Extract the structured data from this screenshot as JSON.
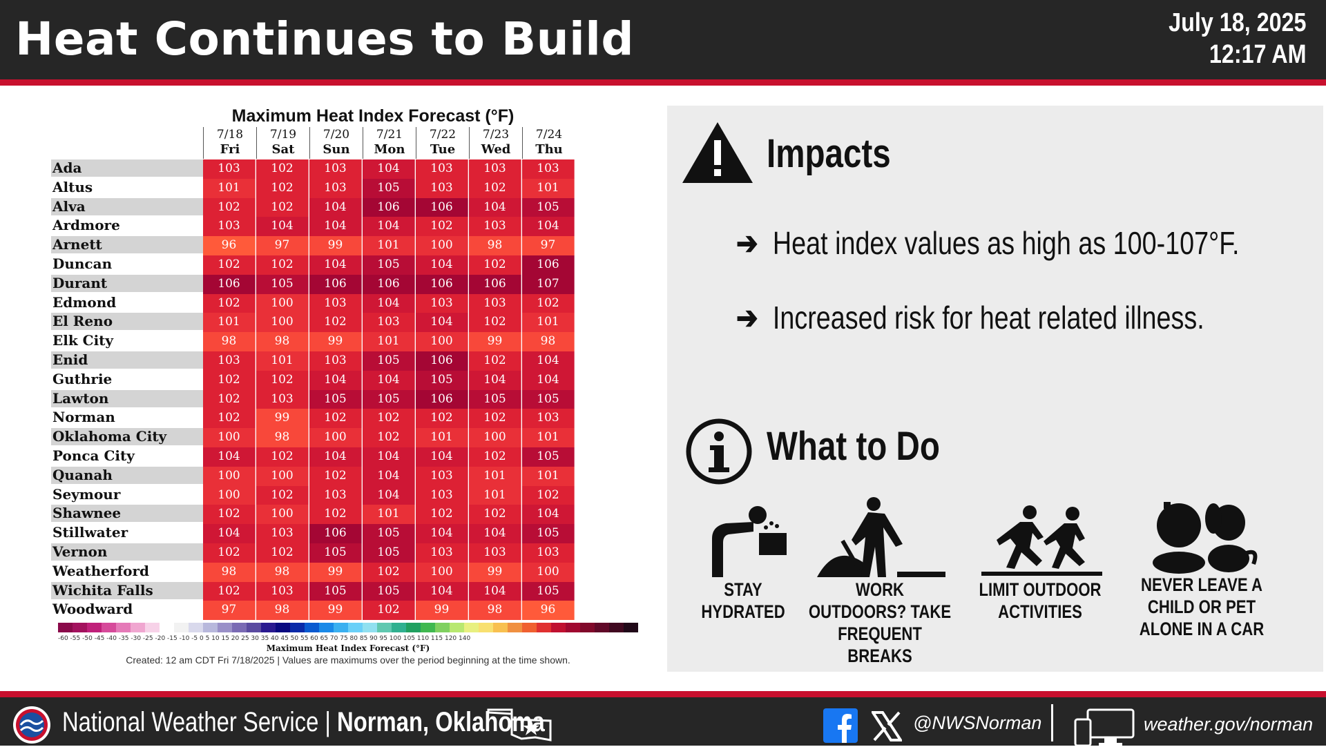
{
  "header": {
    "title": "Heat Continues to Build",
    "date": "July 18, 2025",
    "time": "12:17 AM"
  },
  "table": {
    "title": "Maximum Heat Index Forecast (°F)",
    "days": [
      {
        "date": "7/18",
        "dow": "Fri"
      },
      {
        "date": "7/19",
        "dow": "Sat"
      },
      {
        "date": "7/20",
        "dow": "Sun"
      },
      {
        "date": "7/21",
        "dow": "Mon"
      },
      {
        "date": "7/22",
        "dow": "Tue"
      },
      {
        "date": "7/23",
        "dow": "Wed"
      },
      {
        "date": "7/24",
        "dow": "Thu"
      }
    ],
    "rows": [
      {
        "city": "Ada",
        "values": [
          103,
          102,
          103,
          104,
          103,
          103,
          103
        ]
      },
      {
        "city": "Altus",
        "values": [
          101,
          102,
          103,
          105,
          103,
          102,
          101
        ]
      },
      {
        "city": "Alva",
        "values": [
          102,
          102,
          104,
          106,
          106,
          104,
          105
        ]
      },
      {
        "city": "Ardmore",
        "values": [
          103,
          104,
          104,
          104,
          102,
          103,
          104
        ]
      },
      {
        "city": "Arnett",
        "values": [
          96,
          97,
          99,
          101,
          100,
          98,
          97
        ]
      },
      {
        "city": "Duncan",
        "values": [
          102,
          102,
          104,
          105,
          104,
          102,
          106
        ]
      },
      {
        "city": "Durant",
        "values": [
          106,
          105,
          106,
          106,
          106,
          106,
          107
        ]
      },
      {
        "city": "Edmond",
        "values": [
          102,
          100,
          103,
          104,
          103,
          103,
          102
        ]
      },
      {
        "city": "El Reno",
        "values": [
          101,
          100,
          102,
          103,
          104,
          102,
          101
        ]
      },
      {
        "city": "Elk City",
        "values": [
          98,
          98,
          99,
          101,
          100,
          99,
          98
        ]
      },
      {
        "city": "Enid",
        "values": [
          103,
          101,
          103,
          105,
          106,
          102,
          104
        ]
      },
      {
        "city": "Guthrie",
        "values": [
          102,
          102,
          104,
          104,
          105,
          104,
          104
        ]
      },
      {
        "city": "Lawton",
        "values": [
          102,
          103,
          105,
          105,
          106,
          105,
          105
        ]
      },
      {
        "city": "Norman",
        "values": [
          102,
          99,
          102,
          102,
          102,
          102,
          103
        ]
      },
      {
        "city": "Oklahoma City",
        "values": [
          100,
          98,
          100,
          102,
          101,
          100,
          101
        ]
      },
      {
        "city": "Ponca City",
        "values": [
          104,
          102,
          104,
          104,
          104,
          102,
          105
        ]
      },
      {
        "city": "Quanah",
        "values": [
          100,
          100,
          102,
          104,
          103,
          101,
          101
        ]
      },
      {
        "city": "Seymour",
        "values": [
          100,
          102,
          103,
          104,
          103,
          101,
          102
        ]
      },
      {
        "city": "Shawnee",
        "values": [
          102,
          100,
          102,
          101,
          102,
          102,
          104
        ]
      },
      {
        "city": "Stillwater",
        "values": [
          104,
          103,
          106,
          105,
          104,
          104,
          105
        ]
      },
      {
        "city": "Vernon",
        "values": [
          102,
          102,
          105,
          105,
          103,
          103,
          103
        ]
      },
      {
        "city": "Weatherford",
        "values": [
          98,
          98,
          99,
          102,
          100,
          99,
          100
        ]
      },
      {
        "city": "Wichita Falls",
        "values": [
          102,
          103,
          105,
          105,
          104,
          104,
          105
        ]
      },
      {
        "city": "Woodward",
        "values": [
          97,
          98,
          99,
          102,
          99,
          98,
          96
        ]
      }
    ],
    "colorbar_ticks": "-60 -55 -50 -45 -40 -35 -30 -25 -20 -15 -10 -5 0 5 10 15 20 25 30 35 40 45 50 55 60 65 70 75 80 85 90 95 100 105 110 115 120 140",
    "colorbar_label": "Maximum Heat Index Forecast (°F)",
    "footnote": "Created: 12 am CDT Fri 7/18/2025  |  Values are maximums over the period beginning at the time shown."
  },
  "impacts": {
    "title": "Impacts",
    "bullets": [
      "Heat index values as high as 100-107°F.",
      "Increased risk for heat related illness."
    ]
  },
  "what_to_do": {
    "title": "What to Do",
    "tips": [
      {
        "line1": "STAY",
        "line2": "HYDRATED",
        "line3": ""
      },
      {
        "line1": "WORK OUTDOORS? TAKE",
        "line2": "FREQUENT BREAKS",
        "line3": ""
      },
      {
        "line1": "LIMIT OUTDOOR",
        "line2": "ACTIVITIES",
        "line3": ""
      },
      {
        "line1": "NEVER LEAVE A",
        "line2": "CHILD OR PET",
        "line3": "ALONE IN A CAR"
      }
    ]
  },
  "footer": {
    "org": "National Weather Service | ",
    "office": "Norman, Oklahoma",
    "handle": "@NWSNorman",
    "website": "weather.gov/norman"
  },
  "colors": {
    "header_bg": "#262626",
    "accent_red": "#c8102e",
    "panel_bg": "#ececec"
  }
}
